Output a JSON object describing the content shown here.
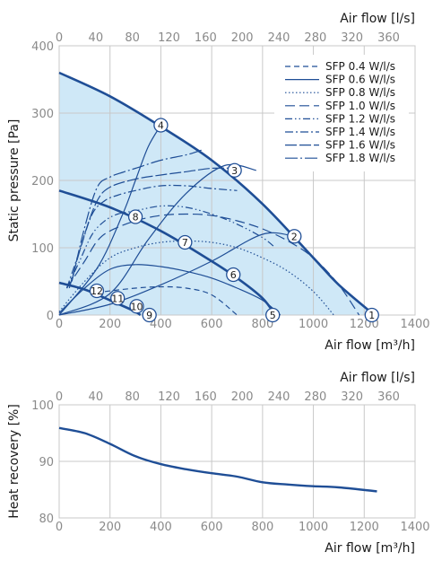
{
  "chart_data": [
    {
      "type": "line",
      "xlabel_bottom": "Air flow [m³/h]",
      "xlabel_top": "Air flow [l/s]",
      "ylabel": "Static pressure [Pa]",
      "xlim": [
        0,
        1400
      ],
      "ylim": [
        0,
        400
      ],
      "x_ticks": [
        0,
        200,
        400,
        600,
        800,
        1000,
        1200,
        1400
      ],
      "x_top_ticks": [
        0,
        40,
        80,
        120,
        160,
        200,
        240,
        280,
        320,
        360
      ],
      "y_ticks": [
        0,
        100,
        200,
        300,
        400
      ],
      "grid": true,
      "legend_position": "top-right",
      "legend": [
        {
          "label": "SFP 0.4 W/l/s",
          "dash": "6,4"
        },
        {
          "label": "SFP 0.6 W/l/s",
          "dash": ""
        },
        {
          "label": "SFP 0.8 W/l/s",
          "dash": "1.5,2.5"
        },
        {
          "label": "SFP 1.0 W/l/s",
          "dash": "11,5"
        },
        {
          "label": "SFP 1.2 W/l/s",
          "dash": "8,3,1.5,3,1.5,3"
        },
        {
          "label": "SFP 1.4 W/l/s",
          "dash": "9,3,2,3"
        },
        {
          "label": "SFP 1.6 W/l/s",
          "dash": "13,3"
        },
        {
          "label": "SFP 1.8 W/l/s",
          "dash": "14,3,2,3"
        }
      ],
      "fan_curves": [
        {
          "x": [
            0,
            200,
            400,
            600,
            800,
            1000,
            1100,
            1240
          ],
          "y": [
            360,
            325,
            280,
            230,
            165,
            85,
            45,
            0
          ]
        },
        {
          "x": [
            0,
            200,
            400,
            600,
            700,
            800,
            850
          ],
          "y": [
            185,
            160,
            125,
            80,
            55,
            25,
            0
          ]
        },
        {
          "x": [
            0,
            100,
            200,
            260,
            300,
            320
          ],
          "y": [
            48,
            38,
            22,
            12,
            5,
            0
          ]
        }
      ],
      "system_curves": [
        {
          "x": [
            0,
            200,
            400,
            600,
            800,
            925
          ],
          "y": [
            0,
            16,
            45,
            80,
            120,
            117
          ]
        },
        {
          "x": [
            0,
            200,
            350,
            500,
            650,
            775
          ],
          "y": [
            0,
            32,
            112,
            181,
            222,
            215
          ]
        },
        {
          "x": [
            0,
            150,
            250,
            300,
            350,
            400
          ],
          "y": [
            0,
            70,
            150,
            200,
            250,
            282
          ]
        }
      ],
      "sfp_curves": [
        {
          "x": [
            180,
            300,
            400,
            500,
            600,
            700
          ],
          "y": [
            35,
            40,
            42,
            40,
            30,
            0
          ]
        },
        {
          "x": [
            0,
            100,
            200,
            300,
            400,
            500,
            600,
            700,
            800,
            870
          ],
          "y": [
            3,
            40,
            68,
            75,
            72,
            65,
            55,
            40,
            22,
            0
          ]
        },
        {
          "x": [
            0,
            100,
            200,
            300,
            400,
            500,
            600,
            700,
            800,
            900,
            1000,
            1080
          ],
          "y": [
            5,
            50,
            85,
            100,
            108,
            110,
            108,
            100,
            85,
            65,
            35,
            0
          ]
        },
        {
          "x": [
            30,
            100,
            150,
            200,
            300,
            400,
            500,
            600,
            700,
            800,
            900,
            1000,
            1100,
            1180
          ],
          "y": [
            40,
            80,
            110,
            125,
            140,
            148,
            150,
            148,
            140,
            128,
            110,
            85,
            45,
            0
          ]
        },
        {
          "x": [
            30,
            80,
            130,
            180,
            230,
            300,
            400,
            500,
            600,
            700,
            800,
            850
          ],
          "y": [
            40,
            80,
            120,
            140,
            150,
            155,
            162,
            160,
            150,
            135,
            115,
            100
          ]
        },
        {
          "x": [
            30,
            80,
            130,
            180,
            230,
            300,
            400,
            500,
            600,
            700
          ],
          "y": [
            40,
            95,
            150,
            170,
            178,
            185,
            192,
            192,
            188,
            185
          ]
        },
        {
          "x": [
            40,
            100,
            150,
            200,
            300,
            400,
            500,
            600,
            700
          ],
          "y": [
            40,
            120,
            170,
            190,
            202,
            208,
            213,
            218,
            218
          ]
        },
        {
          "x": [
            50,
            100,
            150,
            200,
            250,
            300,
            400,
            500,
            560
          ],
          "y": [
            50,
            130,
            190,
            205,
            212,
            218,
            230,
            238,
            245
          ]
        }
      ],
      "points": [
        {
          "label": "1",
          "x": 1230,
          "y": 0
        },
        {
          "label": "2",
          "x": 925,
          "y": 117
        },
        {
          "label": "3",
          "x": 690,
          "y": 215
        },
        {
          "label": "4",
          "x": 400,
          "y": 282
        },
        {
          "label": "5",
          "x": 840,
          "y": 0
        },
        {
          "label": "6",
          "x": 685,
          "y": 60
        },
        {
          "label": "7",
          "x": 495,
          "y": 108
        },
        {
          "label": "8",
          "x": 300,
          "y": 146
        },
        {
          "label": "9",
          "x": 355,
          "y": 0
        },
        {
          "label": "10",
          "x": 305,
          "y": 13
        },
        {
          "label": "11",
          "x": 230,
          "y": 25
        },
        {
          "label": "12",
          "x": 148,
          "y": 36
        }
      ]
    },
    {
      "type": "line",
      "xlabel_bottom": "Air flow [m³/h]",
      "xlabel_top": "Air flow [l/s]",
      "ylabel": "Heat recovery [%]",
      "xlim": [
        0,
        1400
      ],
      "ylim": [
        80,
        100
      ],
      "x_ticks": [
        0,
        200,
        400,
        600,
        800,
        1000,
        1200,
        1400
      ],
      "x_top_ticks": [
        0,
        40,
        80,
        120,
        160,
        200,
        240,
        280,
        320,
        360
      ],
      "y_ticks": [
        80,
        90,
        100
      ],
      "grid": true,
      "series": [
        {
          "x": [
            0,
            100,
            200,
            300,
            400,
            500,
            600,
            700,
            800,
            900,
            1000,
            1100,
            1250
          ],
          "y": [
            95.9,
            95.0,
            93.1,
            90.9,
            89.5,
            88.6,
            87.9,
            87.3,
            86.3,
            85.9,
            85.6,
            85.4,
            84.7
          ]
        }
      ]
    }
  ],
  "colors": {
    "accent": "#1f4e96",
    "area": "#cfe8f7",
    "grid": "#c8c8c8",
    "tick": "#8a8a8a"
  }
}
